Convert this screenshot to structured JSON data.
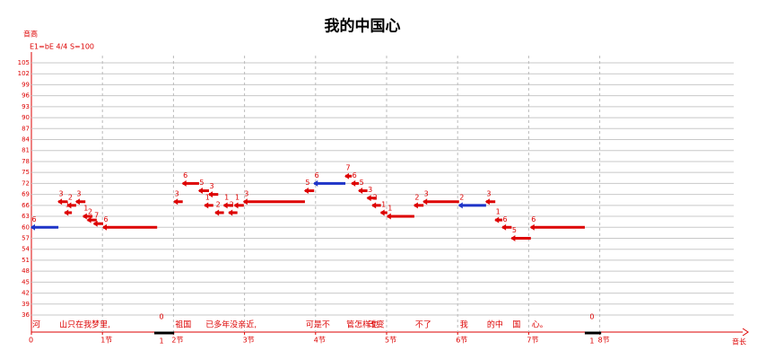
{
  "chart_data": {
    "type": "pianoroll",
    "title": "我的中国心",
    "subtitle": "E1=bE 4/4 S=100",
    "y_label": "音高",
    "x_label": "音长",
    "ylim": [
      36,
      105
    ],
    "yticks": [
      36,
      39,
      42,
      45,
      48,
      51,
      54,
      57,
      60,
      63,
      66,
      69,
      72,
      75,
      78,
      81,
      84,
      87,
      90,
      93,
      96,
      99,
      102,
      105
    ],
    "xlim": [
      0,
      10
    ],
    "xticks": [
      0,
      {
        "value": 1,
        "label": "1节"
      },
      {
        "value": 2,
        "label": "2节"
      },
      {
        "value": 3,
        "label": "3节"
      },
      {
        "value": 4,
        "label": "4节"
      },
      {
        "value": 5,
        "label": "5节"
      },
      {
        "value": 6,
        "label": "6节"
      },
      {
        "value": 7,
        "label": "7节"
      },
      {
        "value": 8,
        "label": "8节"
      }
    ],
    "grid": true,
    "notes": [
      {
        "start": 0,
        "end": 0.38,
        "pitch": 60,
        "label": "6",
        "color": "#1f35c8",
        "lyric": "河"
      },
      {
        "start": 0.38,
        "end": 0.51,
        "pitch": 67,
        "label": "3",
        "color": "#dd0000",
        "lyric": "山只在我梦里,"
      },
      {
        "start": 0.47,
        "end": 0.57,
        "pitch": 64,
        "label": "1",
        "color": "#dd0000"
      },
      {
        "start": 0.51,
        "end": 0.63,
        "pitch": 66,
        "label": "2",
        "color": "#dd0000"
      },
      {
        "start": 0.63,
        "end": 0.76,
        "pitch": 67,
        "label": "3",
        "color": "#dd0000"
      },
      {
        "start": 0.73,
        "end": 0.86,
        "pitch": 63,
        "label": "1",
        "color": "#dd0000"
      },
      {
        "start": 0.79,
        "end": 0.92,
        "pitch": 62,
        "label": "2",
        "color": "#dd0000"
      },
      {
        "start": 0.88,
        "end": 1.01,
        "pitch": 61,
        "label": "7",
        "color": "#dd0000"
      },
      {
        "start": 1.01,
        "end": 1.77,
        "pitch": 60,
        "label": "6",
        "color": "#dd0000"
      },
      {
        "start": 2.01,
        "end": 2.13,
        "pitch": 67,
        "label": "3",
        "color": "#dd0000",
        "lyric": "祖国"
      },
      {
        "start": 2.13,
        "end": 2.36,
        "pitch": 72,
        "label": "6",
        "color": "#dd0000"
      },
      {
        "start": 2.36,
        "end": 2.5,
        "pitch": 70,
        "label": "5",
        "color": "#dd0000"
      },
      {
        "start": 2.5,
        "end": 2.63,
        "pitch": 69,
        "label": "3",
        "color": "#dd0000"
      },
      {
        "start": 2.44,
        "end": 2.56,
        "pitch": 66,
        "label": "1",
        "color": "#dd0000",
        "lyric": "已多年没亲近,"
      },
      {
        "start": 2.59,
        "end": 2.71,
        "pitch": 64,
        "label": "2",
        "color": "#dd0000"
      },
      {
        "start": 2.71,
        "end": 2.84,
        "pitch": 66,
        "label": "1",
        "color": "#dd0000"
      },
      {
        "start": 2.78,
        "end": 2.9,
        "pitch": 64,
        "label": "2",
        "color": "#dd0000"
      },
      {
        "start": 2.86,
        "end": 2.99,
        "pitch": 66,
        "label": "1",
        "color": "#dd0000"
      },
      {
        "start": 2.99,
        "end": 3.85,
        "pitch": 67,
        "label": "3",
        "color": "#dd0000"
      },
      {
        "start": 3.85,
        "end": 3.98,
        "pitch": 70,
        "label": "5",
        "color": "#dd0000",
        "lyric": "可是不"
      },
      {
        "start": 3.98,
        "end": 4.42,
        "pitch": 72,
        "label": "6",
        "color": "#1f35c8"
      },
      {
        "start": 4.42,
        "end": 4.51,
        "pitch": 74,
        "label": "7",
        "color": "#dd0000",
        "lyric": "管怎样也"
      },
      {
        "start": 4.51,
        "end": 4.61,
        "pitch": 72,
        "label": "6",
        "color": "#dd0000"
      },
      {
        "start": 4.61,
        "end": 4.73,
        "pitch": 70,
        "label": "5",
        "color": "#dd0000"
      },
      {
        "start": 4.73,
        "end": 4.86,
        "pitch": 68,
        "label": "3",
        "color": "#dd0000",
        "lyric": "改变"
      },
      {
        "start": 4.8,
        "end": 4.92,
        "pitch": 66,
        "label": "2",
        "color": "#dd0000"
      },
      {
        "start": 4.92,
        "end": 5.01,
        "pitch": 64,
        "label": "1",
        "color": "#dd0000"
      },
      {
        "start": 5.01,
        "end": 5.39,
        "pitch": 63,
        "label": "1",
        "color": "#dd0000"
      },
      {
        "start": 5.39,
        "end": 5.52,
        "pitch": 66,
        "label": "2",
        "color": "#dd0000",
        "lyric": "不了"
      },
      {
        "start": 5.52,
        "end": 6.02,
        "pitch": 67,
        "label": "3",
        "color": "#dd0000"
      },
      {
        "start": 6.02,
        "end": 6.4,
        "pitch": 66,
        "label": "2",
        "color": "#1f35c8",
        "lyric": "我"
      },
      {
        "start": 6.4,
        "end": 6.53,
        "pitch": 67,
        "label": "3",
        "color": "#dd0000",
        "lyric": "的中"
      },
      {
        "start": 6.53,
        "end": 6.63,
        "pitch": 62,
        "label": "1",
        "color": "#dd0000"
      },
      {
        "start": 6.63,
        "end": 6.76,
        "pitch": 60,
        "label": "6",
        "color": "#dd0000"
      },
      {
        "start": 6.76,
        "end": 7.03,
        "pitch": 57,
        "label": "5",
        "color": "#dd0000",
        "lyric": "国"
      },
      {
        "start": 7.03,
        "end": 7.79,
        "pitch": 60,
        "label": "6",
        "color": "#dd0000",
        "lyric": "心。"
      }
    ],
    "rests": [
      {
        "start": 1.73,
        "end": 2.01,
        "label": "0",
        "sub": "1"
      },
      {
        "start": 7.79,
        "end": 8.02,
        "label": "0",
        "sub": "1"
      }
    ]
  }
}
